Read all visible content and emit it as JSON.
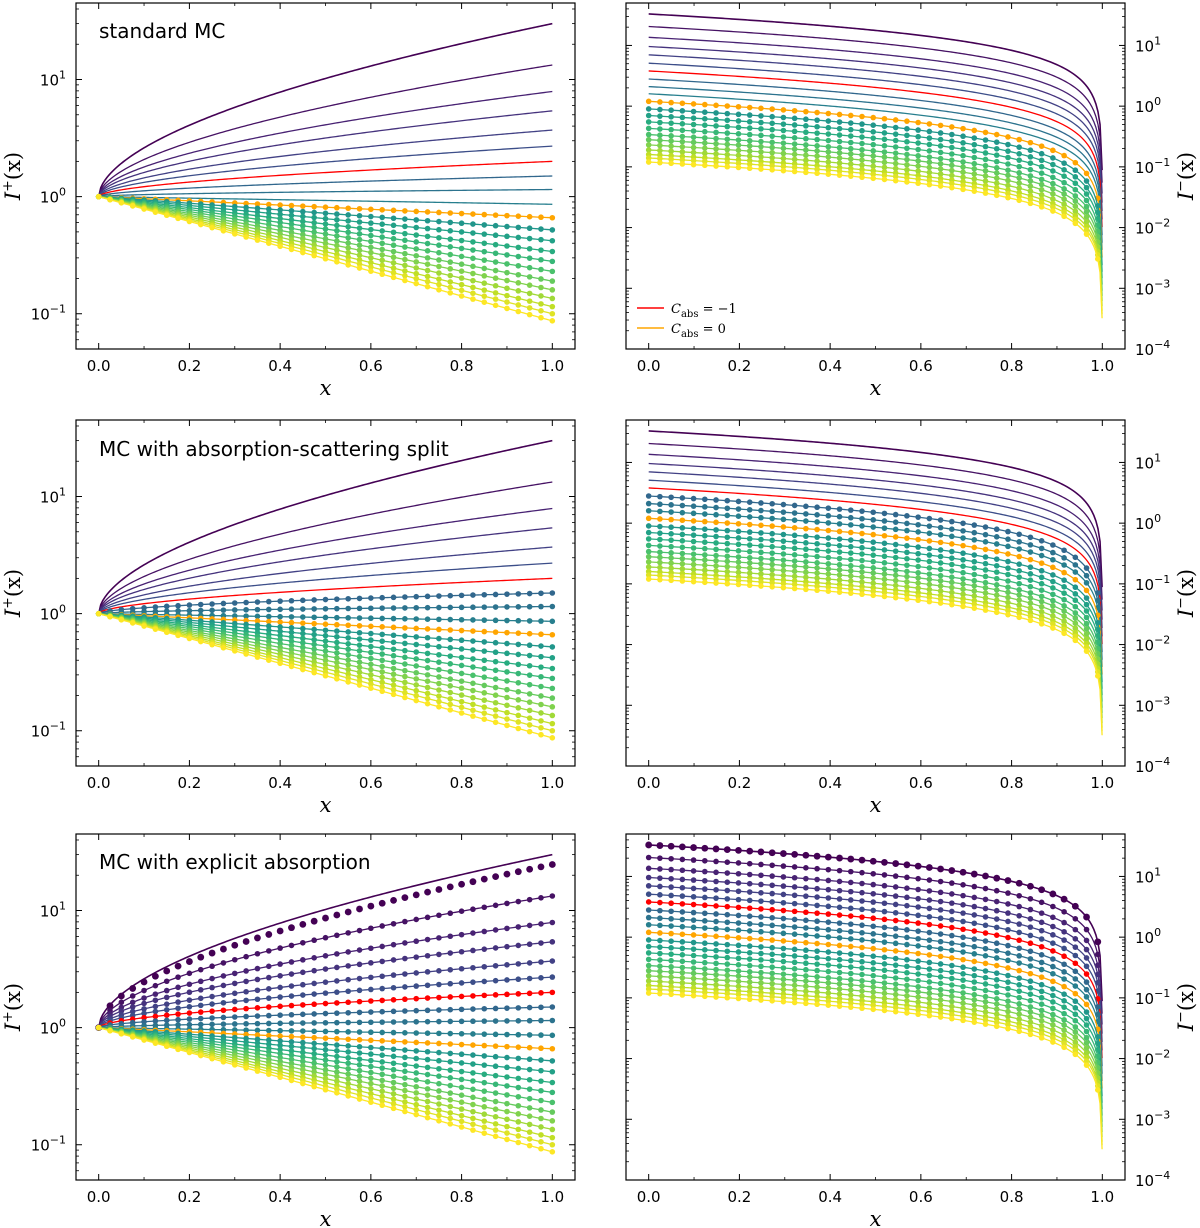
{
  "figure": {
    "background": "#ffffff"
  },
  "colors": {
    "palette": [
      "#440154",
      "#482475",
      "#414487",
      "#355f8d",
      "#2a788e",
      "#21908d",
      "#22a884",
      "#42be71",
      "#7ad151",
      "#bddf26",
      "#fde725"
    ],
    "c_abs_minus1": "#ff0000",
    "c_abs_0": "#ffa500"
  },
  "chart_data": [
    {
      "type": "line",
      "panel": "top-left",
      "title": "standard MC",
      "xlabel": "x",
      "ylabel_main": "I",
      "ylabel_sup": "+",
      "ylabel_arg": "(x)",
      "xlim": [
        -0.05,
        1.05
      ],
      "ylim": [
        0.05,
        45
      ],
      "yscale": "log",
      "x_ticks": [
        "0.0",
        "0.2",
        "0.4",
        "0.6",
        "0.8",
        "1.0"
      ],
      "y_ticks": [
        {
          "base": "10",
          "exp": "1",
          "value": 10
        },
        {
          "base": "10",
          "exp": "0",
          "value": 1
        },
        {
          "base": "10",
          "exp": "−1",
          "value": 0.1
        }
      ],
      "yaxis_side": "left",
      "direction": "plus",
      "series_count": 22,
      "x_end_values": [
        30,
        13.3,
        7.9,
        5.4,
        3.7,
        2.7,
        2.0,
        1.5,
        1.15,
        0.86,
        0.66,
        0.52,
        0.42,
        0.34,
        0.28,
        0.23,
        0.19,
        0.16,
        0.135,
        0.115,
        0.1,
        0.087
      ],
      "markers_start_index": 10,
      "markers_offset_ratio": 1.0
    },
    {
      "type": "line",
      "panel": "top-right",
      "title": "",
      "xlabel": "x",
      "ylabel_main": "I",
      "ylabel_sup": "−",
      "ylabel_arg": "(x)",
      "xlim": [
        -0.05,
        1.05
      ],
      "ylim": [
        0.0001,
        50
      ],
      "yscale": "log",
      "x_ticks": [
        "0.0",
        "0.2",
        "0.4",
        "0.6",
        "0.8",
        "1.0"
      ],
      "y_ticks": [
        {
          "base": "10",
          "exp": "1",
          "value": 10
        },
        {
          "base": "10",
          "exp": "0",
          "value": 1
        },
        {
          "base": "10",
          "exp": "−1",
          "value": 0.1
        },
        {
          "base": "10",
          "exp": "−2",
          "value": 0.01
        },
        {
          "base": "10",
          "exp": "−3",
          "value": 0.001
        },
        {
          "base": "10",
          "exp": "−4",
          "value": 0.0001
        }
      ],
      "yaxis_side": "right",
      "direction": "minus",
      "series_count": 22,
      "x0_values": [
        33,
        20.5,
        13.6,
        9.6,
        7.0,
        5.1,
        3.8,
        2.8,
        2.1,
        1.6,
        1.2,
        0.9,
        0.7,
        0.55,
        0.43,
        0.34,
        0.28,
        0.23,
        0.19,
        0.16,
        0.14,
        0.12
      ],
      "legend": [
        {
          "label": "C",
          "sub": "abs",
          "rest": " = −1",
          "color": "#ff0000"
        },
        {
          "label": "C",
          "sub": "abs",
          "rest": " = 0",
          "color": "#ffa500"
        }
      ],
      "markers_start_index": 10,
      "markers_offset_ratio": 1.0
    },
    {
      "type": "line",
      "panel": "middle-left",
      "title": "MC with absorption-scattering split",
      "xlabel": "x",
      "ylabel_main": "I",
      "ylabel_sup": "+",
      "ylabel_arg": "(x)",
      "xlim": [
        -0.05,
        1.05
      ],
      "ylim": [
        0.05,
        45
      ],
      "yscale": "log",
      "x_ticks": [
        "0.0",
        "0.2",
        "0.4",
        "0.6",
        "0.8",
        "1.0"
      ],
      "y_ticks": [
        {
          "base": "10",
          "exp": "1",
          "value": 10
        },
        {
          "base": "10",
          "exp": "0",
          "value": 1
        },
        {
          "base": "10",
          "exp": "−1",
          "value": 0.1
        }
      ],
      "yaxis_side": "left",
      "direction": "plus",
      "series_count": 22,
      "x_end_values": [
        30,
        13.3,
        7.9,
        5.4,
        3.7,
        2.7,
        2.0,
        1.5,
        1.15,
        0.86,
        0.66,
        0.52,
        0.42,
        0.34,
        0.28,
        0.23,
        0.19,
        0.16,
        0.135,
        0.115,
        0.1,
        0.087
      ],
      "markers_start_index": 7,
      "markers_offset_ratio": 1.0
    },
    {
      "type": "line",
      "panel": "middle-right",
      "title": "",
      "xlabel": "x",
      "ylabel_main": "I",
      "ylabel_sup": "−",
      "ylabel_arg": "(x)",
      "xlim": [
        -0.05,
        1.05
      ],
      "ylim": [
        0.0001,
        50
      ],
      "yscale": "log",
      "x_ticks": [
        "0.0",
        "0.2",
        "0.4",
        "0.6",
        "0.8",
        "1.0"
      ],
      "y_ticks": [
        {
          "base": "10",
          "exp": "1",
          "value": 10
        },
        {
          "base": "10",
          "exp": "0",
          "value": 1
        },
        {
          "base": "10",
          "exp": "−1",
          "value": 0.1
        },
        {
          "base": "10",
          "exp": "−2",
          "value": 0.01
        },
        {
          "base": "10",
          "exp": "−3",
          "value": 0.001
        },
        {
          "base": "10",
          "exp": "−4",
          "value": 0.0001
        }
      ],
      "yaxis_side": "right",
      "direction": "minus",
      "series_count": 22,
      "x0_values": [
        33,
        20.5,
        13.6,
        9.6,
        7.0,
        5.1,
        3.8,
        2.8,
        2.1,
        1.6,
        1.2,
        0.9,
        0.7,
        0.55,
        0.43,
        0.34,
        0.28,
        0.23,
        0.19,
        0.16,
        0.14,
        0.12
      ],
      "markers_start_index": 7,
      "markers_offset_ratio": 1.0
    },
    {
      "type": "line",
      "panel": "bottom-left",
      "title": "MC with explicit absorption",
      "xlabel": "x",
      "ylabel_main": "I",
      "ylabel_sup": "+",
      "ylabel_arg": "(x)",
      "xlim": [
        -0.05,
        1.05
      ],
      "ylim": [
        0.05,
        45
      ],
      "yscale": "log",
      "x_ticks": [
        "0.0",
        "0.2",
        "0.4",
        "0.6",
        "0.8",
        "1.0"
      ],
      "y_ticks": [
        {
          "base": "10",
          "exp": "1",
          "value": 10
        },
        {
          "base": "10",
          "exp": "0",
          "value": 1
        },
        {
          "base": "10",
          "exp": "−1",
          "value": 0.1
        }
      ],
      "yaxis_side": "left",
      "direction": "plus",
      "series_count": 22,
      "x_end_values": [
        30,
        13.3,
        7.9,
        5.4,
        3.7,
        2.7,
        2.0,
        1.5,
        1.15,
        0.86,
        0.66,
        0.52,
        0.42,
        0.34,
        0.28,
        0.23,
        0.19,
        0.16,
        0.135,
        0.115,
        0.1,
        0.087
      ],
      "markers_start_index": 0,
      "markers_offset_ratio": 0.82
    },
    {
      "type": "line",
      "panel": "bottom-right",
      "title": "",
      "xlabel": "x",
      "ylabel_main": "I",
      "ylabel_sup": "−",
      "ylabel_arg": "(x)",
      "xlim": [
        -0.05,
        1.05
      ],
      "ylim": [
        0.0001,
        50
      ],
      "yscale": "log",
      "x_ticks": [
        "0.0",
        "0.2",
        "0.4",
        "0.6",
        "0.8",
        "1.0"
      ],
      "y_ticks": [
        {
          "base": "10",
          "exp": "1",
          "value": 10
        },
        {
          "base": "10",
          "exp": "0",
          "value": 1
        },
        {
          "base": "10",
          "exp": "−1",
          "value": 0.1
        },
        {
          "base": "10",
          "exp": "−2",
          "value": 0.01
        },
        {
          "base": "10",
          "exp": "−3",
          "value": 0.001
        },
        {
          "base": "10",
          "exp": "−4",
          "value": 0.0001
        }
      ],
      "yaxis_side": "right",
      "direction": "minus",
      "series_count": 22,
      "x0_values": [
        33,
        20.5,
        13.6,
        9.6,
        7.0,
        5.1,
        3.8,
        2.8,
        2.1,
        1.6,
        1.2,
        0.9,
        0.7,
        0.55,
        0.43,
        0.34,
        0.28,
        0.23,
        0.19,
        0.16,
        0.14,
        0.12
      ],
      "markers_start_index": 0,
      "markers_offset_ratio": 0.82
    }
  ]
}
